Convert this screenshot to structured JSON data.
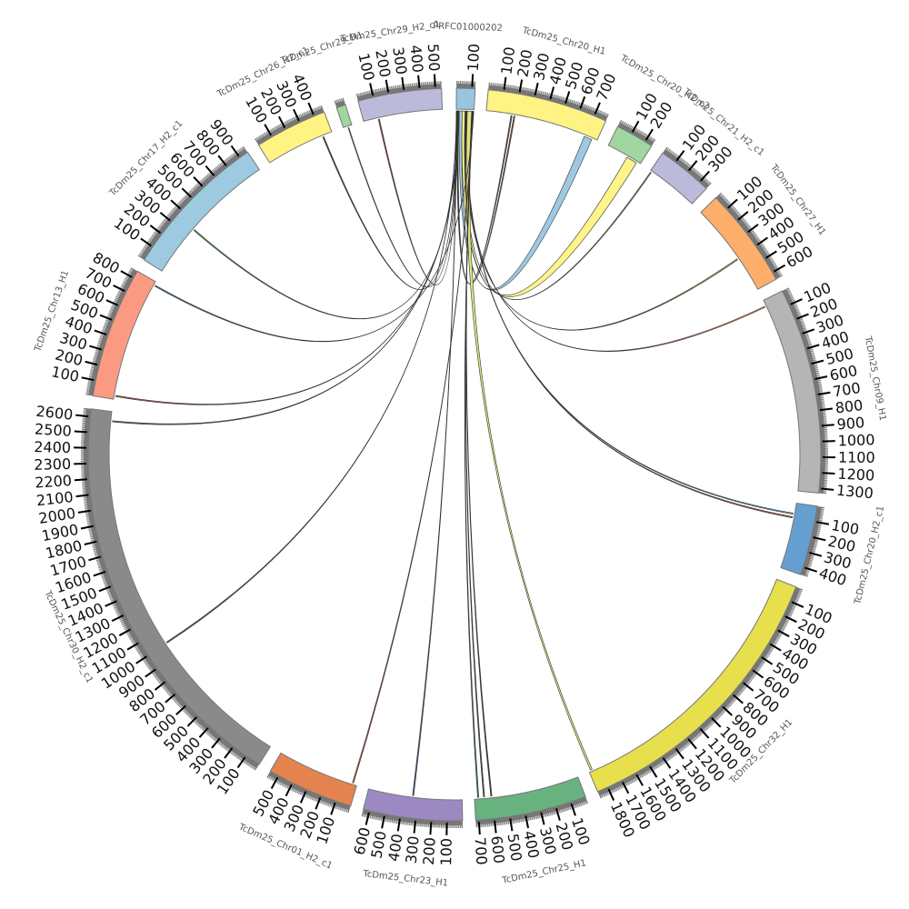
{
  "chart_data": {
    "type": "chord",
    "title": "",
    "tick_interval": 100,
    "chromosomes": [
      {
        "name": "PRFC01000202",
        "length": 120,
        "color": "#98c6e1"
      },
      {
        "name": "TcDm25_Chr20_H1",
        "length": 780,
        "color": "#fff383"
      },
      {
        "name": "TcDm25_Chr20_H2_c2",
        "length": 250,
        "color": "#a0d6a0"
      },
      {
        "name": "TcDm25_Chr21_H2_c1",
        "length": 360,
        "color": "#bcbadb"
      },
      {
        "name": "TcDm25_Chr27_H1",
        "length": 650,
        "color": "#fdae6b"
      },
      {
        "name": "TcDm25_Chr09_H1",
        "length": 1330,
        "color": "#b5b5b5"
      },
      {
        "name": "TcDm25_Chr20_H2_c1",
        "length": 450,
        "color": "#659fd0"
      },
      {
        "name": "TcDm25_Chr32_H1",
        "length": 1870,
        "color": "#e8df4c"
      },
      {
        "name": "TcDm25_Chr25_H1",
        "length": 720,
        "color": "#68b27f"
      },
      {
        "name": "TcDm25_Chr23_H1",
        "length": 640,
        "color": "#9c89c2"
      },
      {
        "name": "TcDm25_Chr01_H2_c1",
        "length": 560,
        "color": "#e5834f"
      },
      {
        "name": "TcDm25_Chr30_H2_c1",
        "length": 2650,
        "color": "#8a8a8a"
      },
      {
        "name": "TcDm25_Chr13_H1",
        "length": 850,
        "color": "#fb9a82"
      },
      {
        "name": "TcDm25_Chr17_H2_c1",
        "length": 960,
        "color": "#9ecae1"
      },
      {
        "name": "TcDm25_Chr26_H2_c1",
        "length": 470,
        "color": "#fff383"
      },
      {
        "name": "TcDm25_Chr29_H1",
        "length": 60,
        "color": "#a0d6a0"
      },
      {
        "name": "TcDm25_Chr29_H2_c1",
        "length": 540,
        "color": "#bcbadb"
      }
    ],
    "links": [
      {
        "source": [
          0,
          5,
          10
        ],
        "target": [
          1,
          170,
          178
        ],
        "color": "#555555"
      },
      {
        "source": [
          0,
          10,
          15
        ],
        "target": [
          1,
          190,
          198
        ],
        "color": "#8c4a2a"
      },
      {
        "source": [
          0,
          20,
          40
        ],
        "target": [
          1,
          690,
          745
        ],
        "color": "#98c6e1"
      },
      {
        "source": [
          0,
          40,
          60
        ],
        "target": [
          2,
          150,
          225
        ],
        "color": "#fff383"
      },
      {
        "source": [
          0,
          60,
          63
        ],
        "target": [
          3,
          5,
          12
        ],
        "color": "#6aa86a"
      },
      {
        "source": [
          0,
          63,
          66
        ],
        "target": [
          4,
          400,
          408
        ],
        "color": "#b8a95a"
      },
      {
        "source": [
          0,
          66,
          69
        ],
        "target": [
          5,
          40,
          48
        ],
        "color": "#e5834f"
      },
      {
        "source": [
          0,
          69,
          72
        ],
        "target": [
          6,
          70,
          78
        ],
        "color": "#659fd0"
      },
      {
        "source": [
          0,
          72,
          75
        ],
        "target": [
          6,
          95,
          103
        ],
        "color": "#c0553a"
      },
      {
        "source": [
          0,
          75,
          105
        ],
        "target": [
          7,
          1845,
          1858
        ],
        "color": "#dde27a"
      },
      {
        "source": [
          0,
          105,
          108
        ],
        "target": [
          8,
          600,
          608
        ],
        "color": "#333333"
      },
      {
        "source": [
          0,
          108,
          111
        ],
        "target": [
          8,
          650,
          658
        ],
        "color": "#444444"
      },
      {
        "source": [
          0,
          111,
          114
        ],
        "target": [
          8,
          690,
          698
        ],
        "color": "#2f7a4f"
      },
      {
        "source": [
          0,
          2,
          5
        ],
        "target": [
          9,
          330,
          338
        ],
        "color": "#4a4680"
      },
      {
        "source": [
          0,
          114,
          117
        ],
        "target": [
          10,
          25,
          33
        ],
        "color": "#c0553a"
      },
      {
        "source": [
          0,
          0,
          2
        ],
        "target": [
          11,
          1000,
          1008
        ],
        "color": "#555555"
      },
      {
        "source": [
          0,
          15,
          18
        ],
        "target": [
          11,
          2580,
          2588
        ],
        "color": "#5a5a8a"
      },
      {
        "source": [
          0,
          18,
          20
        ],
        "target": [
          12,
          20,
          28
        ],
        "color": "#b05a45"
      },
      {
        "source": [
          0,
          117,
          119
        ],
        "target": [
          12,
          820,
          828
        ],
        "color": "#3a6a8a"
      },
      {
        "source": [
          0,
          1,
          3
        ],
        "target": [
          13,
          350,
          358
        ],
        "color": "#5a9a5a"
      },
      {
        "source": [
          0,
          3,
          5
        ],
        "target": [
          14,
          400,
          408
        ],
        "color": "#444444"
      },
      {
        "source": [
          0,
          6,
          8
        ],
        "target": [
          15,
          30,
          36
        ],
        "color": "#777777"
      },
      {
        "source": [
          0,
          8,
          10
        ],
        "target": [
          16,
          100,
          108
        ],
        "color": "#8c4a2a"
      }
    ]
  }
}
